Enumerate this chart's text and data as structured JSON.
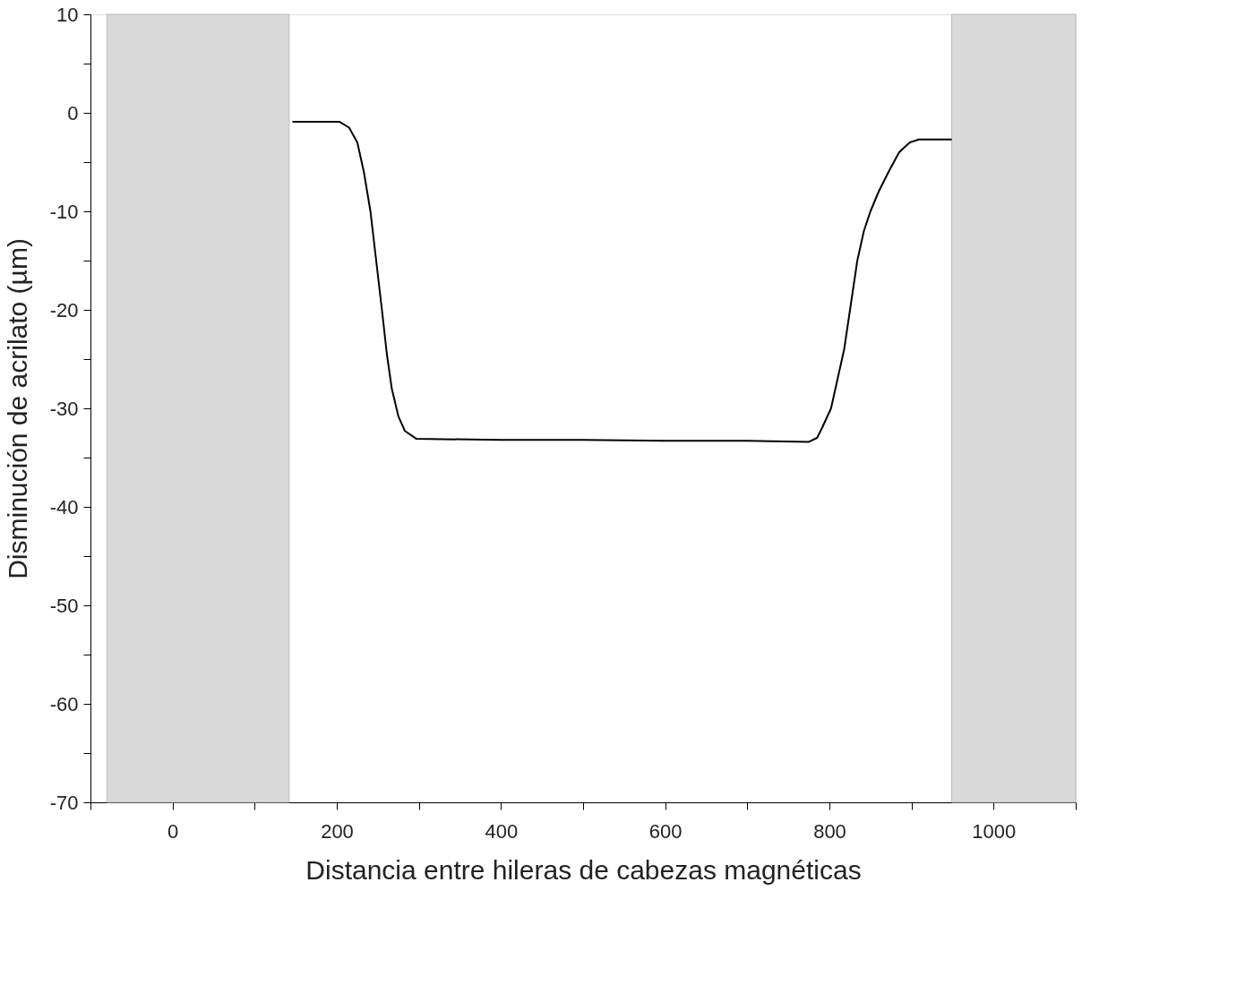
{
  "chart_data": {
    "type": "line",
    "xlabel": "Distancia entre hileras de cabezas magnéticas",
    "ylabel": "Disminución de acrilato (µm)",
    "xlim": [
      -100,
      1100
    ],
    "xticks": [
      {
        "value": -100,
        "label": null
      },
      0,
      {
        "value": 100,
        "label": null
      },
      200,
      {
        "value": 300,
        "label": null
      },
      400,
      {
        "value": 500,
        "label": null
      },
      600,
      {
        "value": 700,
        "label": null
      },
      800,
      {
        "value": 900,
        "label": null
      },
      1000,
      {
        "value": 1100,
        "label": null
      }
    ],
    "ylim": [
      -70,
      10
    ],
    "yticks": [
      -70,
      {
        "value": -65,
        "label": null
      },
      -60,
      {
        "value": -55,
        "label": null
      },
      -50,
      {
        "value": -45,
        "label": null
      },
      -40,
      {
        "value": -35,
        "label": null
      },
      -30,
      {
        "value": -25,
        "label": null
      },
      -20,
      {
        "value": -15,
        "label": null
      },
      -10,
      {
        "value": -5,
        "label": null
      },
      0,
      {
        "value": 5,
        "label": null
      },
      10
    ],
    "bands": [
      {
        "axis": "x",
        "from": -80,
        "to": 142,
        "color": "#d9d9d9"
      },
      {
        "axis": "x",
        "from": 949,
        "to": 1100,
        "color": "#d9d9d9"
      }
    ],
    "series": [
      {
        "color": "#000000",
        "x": [
          146,
          203,
          215,
          225,
          233,
          241,
          248,
          255,
          261,
          267,
          275,
          283,
          297,
          400,
          500,
          600,
          700,
          775,
          785,
          791,
          802,
          810,
          818,
          826,
          834,
          842,
          850,
          860,
          872,
          885,
          898,
          909,
          949
        ],
        "values": [
          -0.9,
          -0.9,
          -1.5,
          -3,
          -6,
          -10,
          -15,
          -20,
          -24.5,
          -28,
          -30.8,
          -32.3,
          -33.1,
          -33.2,
          -33.2,
          -33.3,
          -33.3,
          -33.4,
          -33,
          -32,
          -30,
          -27,
          -24,
          -19.5,
          -15,
          -12,
          -10,
          -8,
          -6,
          -4,
          -3,
          -2.7,
          -2.7
        ]
      }
    ]
  }
}
